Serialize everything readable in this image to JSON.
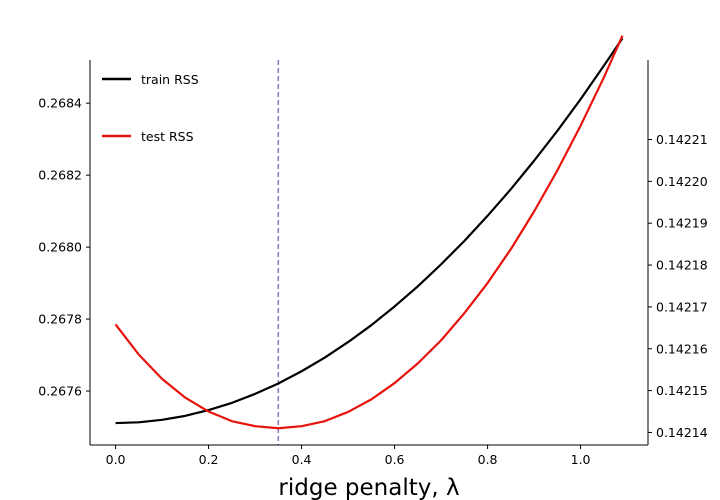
{
  "chart_data": {
    "type": "line",
    "title": "",
    "xlabel": "ridge penalty, λ",
    "xlim": [
      -0.055,
      1.145
    ],
    "x_ticks": [
      0.0,
      0.2,
      0.4,
      0.6,
      0.8,
      1.0
    ],
    "x_tick_labels": [
      "0.0",
      "0.2",
      "0.4",
      "0.6",
      "0.8",
      "1.0"
    ],
    "left_axis": {
      "ylim": [
        0.26745,
        0.26852
      ],
      "ticks": [
        0.2676,
        0.2678,
        0.268,
        0.2682,
        0.2684
      ],
      "tick_labels": [
        "0.2676",
        "0.2678",
        "0.2680",
        "0.2682",
        "0.2684"
      ]
    },
    "right_axis": {
      "ylim": [
        0.142137,
        0.142229
      ],
      "ticks": [
        0.14214,
        0.14215,
        0.14216,
        0.14217,
        0.14218,
        0.14219,
        0.1422,
        0.14221
      ],
      "tick_labels": [
        "0.14214",
        "0.14215",
        "0.14216",
        "0.14217",
        "0.14218",
        "0.14219",
        "0.14220",
        "0.14221"
      ]
    },
    "vline": {
      "x": 0.35,
      "color": "#8a72c8",
      "style": "dashed"
    },
    "legend_position": "top-left",
    "series": [
      {
        "name": "train RSS",
        "axis": "left",
        "color": "#000000",
        "x": [
          0.0,
          0.05,
          0.1,
          0.15,
          0.2,
          0.25,
          0.3,
          0.35,
          0.4,
          0.45,
          0.5,
          0.55,
          0.6,
          0.65,
          0.7,
          0.75,
          0.8,
          0.85,
          0.9,
          0.95,
          1.0,
          1.05,
          1.09
        ],
        "y": [
          0.267511,
          0.267513,
          0.26752,
          0.267531,
          0.267547,
          0.267567,
          0.267592,
          0.267621,
          0.267655,
          0.267693,
          0.267736,
          0.267783,
          0.267835,
          0.267891,
          0.267952,
          0.268017,
          0.268087,
          0.268161,
          0.26824,
          0.268323,
          0.268411,
          0.268504,
          0.26858
        ]
      },
      {
        "name": "test RSS",
        "axis": "right",
        "color": "#e8120c",
        "x": [
          0.0,
          0.05,
          0.1,
          0.15,
          0.2,
          0.25,
          0.3,
          0.35,
          0.4,
          0.45,
          0.5,
          0.55,
          0.6,
          0.65,
          0.7,
          0.75,
          0.8,
          0.85,
          0.9,
          0.95,
          1.0,
          1.05,
          1.09
        ],
        "y": [
          0.1421658,
          0.1421586,
          0.1421528,
          0.1421483,
          0.142145,
          0.1421427,
          0.1421415,
          0.142141,
          0.1421415,
          0.1421427,
          0.1421449,
          0.1421479,
          0.1421518,
          0.1421565,
          0.142162,
          0.1421685,
          0.1421757,
          0.1421838,
          0.1421928,
          0.1422026,
          0.1422133,
          0.1422248,
          0.1422348
        ]
      }
    ]
  }
}
